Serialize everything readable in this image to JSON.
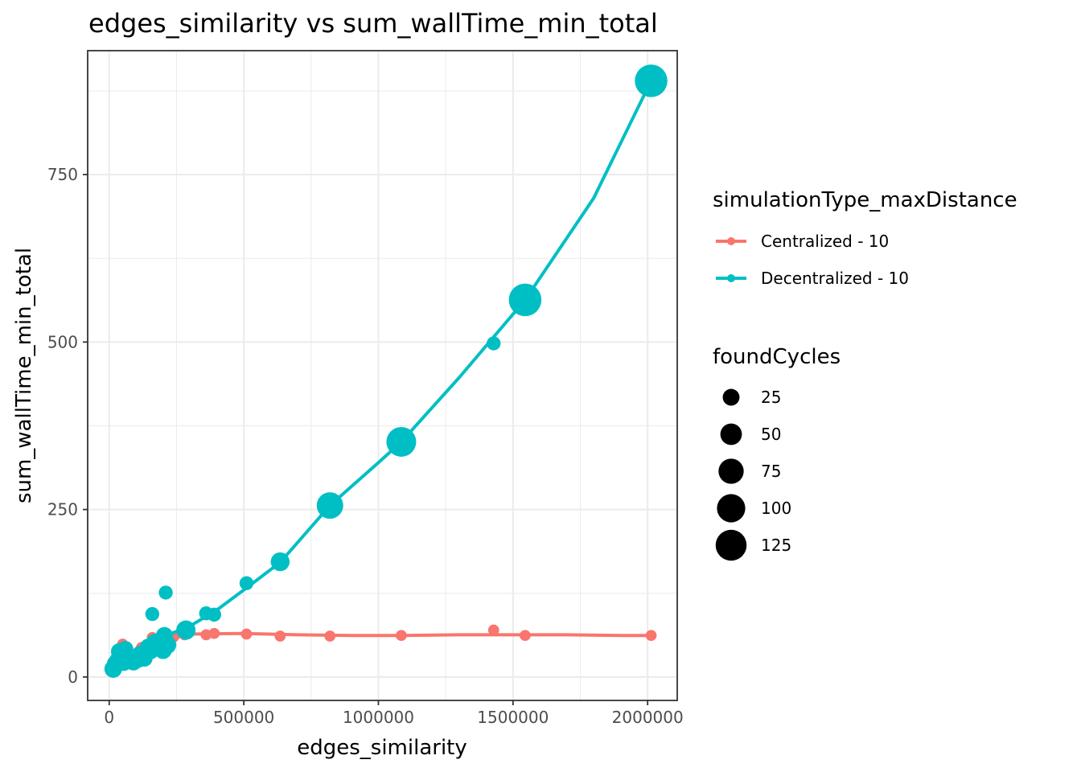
{
  "chart_data": {
    "type": "scatter",
    "title": "edges_similarity  vs  sum_wallTime_min_total",
    "xlabel": "edges_similarity",
    "ylabel": "sum_wallTime_min_total",
    "xlim": [
      -80000,
      2110000
    ],
    "ylim": [
      -35,
      935
    ],
    "x_ticks": [
      0,
      500000,
      1000000,
      1500000,
      2000000
    ],
    "x_tick_labels": [
      "0",
      "500000",
      "1000000",
      "1500000",
      "2000000"
    ],
    "y_ticks": [
      0,
      250,
      500,
      750
    ],
    "y_tick_labels": [
      "0",
      "250",
      "500",
      "750"
    ],
    "grid": true,
    "legend_position": "right",
    "color_legend": {
      "title": "simulationType_maxDistance",
      "entries": [
        "Centralized - 10",
        "Decentralized - 10"
      ]
    },
    "size_legend": {
      "title": "foundCycles",
      "values": [
        25,
        50,
        75,
        100,
        125
      ],
      "labels": [
        "25",
        "50",
        "75",
        "100",
        "125"
      ]
    },
    "series": [
      {
        "name": "Centralized - 10",
        "color": "#F8766D",
        "points": [
          {
            "x": 15000,
            "y": 18,
            "size": 5
          },
          {
            "x": 25000,
            "y": 24,
            "size": 5
          },
          {
            "x": 35000,
            "y": 30,
            "size": 5
          },
          {
            "x": 50000,
            "y": 49,
            "size": 5
          },
          {
            "x": 60000,
            "y": 28,
            "size": 5
          },
          {
            "x": 80000,
            "y": 33,
            "size": 5
          },
          {
            "x": 100000,
            "y": 35,
            "size": 5
          },
          {
            "x": 120000,
            "y": 44,
            "size": 5
          },
          {
            "x": 140000,
            "y": 40,
            "size": 5
          },
          {
            "x": 160000,
            "y": 59,
            "size": 5
          },
          {
            "x": 180000,
            "y": 50,
            "size": 5
          },
          {
            "x": 210000,
            "y": 55,
            "size": 5
          },
          {
            "x": 240000,
            "y": 60,
            "size": 5
          },
          {
            "x": 280000,
            "y": 63,
            "size": 5
          },
          {
            "x": 360000,
            "y": 63,
            "size": 5
          },
          {
            "x": 390000,
            "y": 65,
            "size": 5
          },
          {
            "x": 510000,
            "y": 64,
            "size": 5
          },
          {
            "x": 635000,
            "y": 61,
            "size": 5
          },
          {
            "x": 820000,
            "y": 61,
            "size": 5
          },
          {
            "x": 1085000,
            "y": 62,
            "size": 5
          },
          {
            "x": 1428000,
            "y": 70,
            "size": 5
          },
          {
            "x": 1545000,
            "y": 62,
            "size": 5
          },
          {
            "x": 2013000,
            "y": 62,
            "size": 5
          }
        ],
        "trend": {
          "x": [
            15000,
            100000,
            200000,
            300000,
            500000,
            700000,
            900000,
            1100000,
            1300000,
            1500000,
            1700000,
            1900000,
            2013000
          ],
          "y": [
            20,
            35,
            55,
            64,
            65,
            63,
            62,
            62,
            63,
            63,
            63,
            62,
            62
          ]
        }
      },
      {
        "name": "Decentralized - 10",
        "color": "#00BFC4",
        "points": [
          {
            "x": 15000,
            "y": 12,
            "size": 25
          },
          {
            "x": 22000,
            "y": 20,
            "size": 20
          },
          {
            "x": 30000,
            "y": 25,
            "size": 18
          },
          {
            "x": 38000,
            "y": 38,
            "size": 22
          },
          {
            "x": 45000,
            "y": 30,
            "size": 15
          },
          {
            "x": 55000,
            "y": 20,
            "size": 14
          },
          {
            "x": 60000,
            "y": 42,
            "size": 18
          },
          {
            "x": 75000,
            "y": 28,
            "size": 14
          },
          {
            "x": 90000,
            "y": 22,
            "size": 20
          },
          {
            "x": 105000,
            "y": 25,
            "size": 18
          },
          {
            "x": 115000,
            "y": 35,
            "size": 18
          },
          {
            "x": 130000,
            "y": 28,
            "size": 22
          },
          {
            "x": 145000,
            "y": 45,
            "size": 20
          },
          {
            "x": 155000,
            "y": 38,
            "size": 16
          },
          {
            "x": 160000,
            "y": 94,
            "size": 12
          },
          {
            "x": 170000,
            "y": 52,
            "size": 22
          },
          {
            "x": 185000,
            "y": 45,
            "size": 18
          },
          {
            "x": 200000,
            "y": 40,
            "size": 25
          },
          {
            "x": 205000,
            "y": 62,
            "size": 22
          },
          {
            "x": 210000,
            "y": 126,
            "size": 12
          },
          {
            "x": 215000,
            "y": 48,
            "size": 28
          },
          {
            "x": 285000,
            "y": 70,
            "size": 32
          },
          {
            "x": 360000,
            "y": 95,
            "size": 12
          },
          {
            "x": 390000,
            "y": 93,
            "size": 12
          },
          {
            "x": 510000,
            "y": 140,
            "size": 12
          },
          {
            "x": 635000,
            "y": 172,
            "size": 30
          },
          {
            "x": 820000,
            "y": 256,
            "size": 75
          },
          {
            "x": 1085000,
            "y": 351,
            "size": 100
          },
          {
            "x": 1428000,
            "y": 498,
            "size": 12
          },
          {
            "x": 1545000,
            "y": 563,
            "size": 125
          },
          {
            "x": 2013000,
            "y": 890,
            "size": 125
          }
        ],
        "trend": {
          "x": [
            15000,
            100000,
            200000,
            300000,
            400000,
            500000,
            635000,
            820000,
            1000000,
            1085000,
            1300000,
            1545000,
            1800000,
            2013000
          ],
          "y": [
            20,
            38,
            60,
            76,
            100,
            130,
            171,
            256,
            320,
            351,
            447,
            563,
            715,
            890
          ]
        }
      }
    ]
  }
}
